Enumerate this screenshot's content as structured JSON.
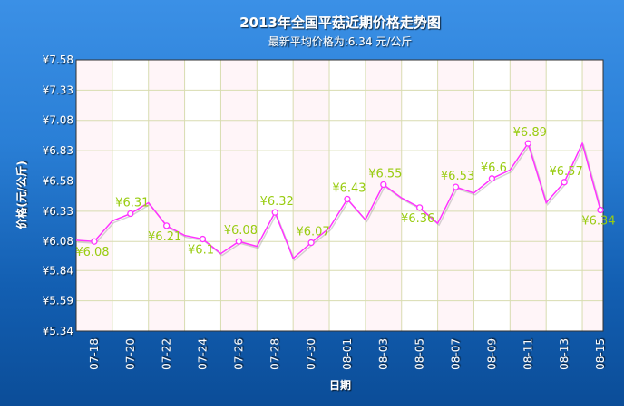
{
  "chart_data": {
    "type": "line",
    "title": "2013年全国平菇近期价格走势图",
    "subtitle": "最新平均价格为:6.34 元/公斤",
    "xlabel": "日期",
    "ylabel": "价格(元/公斤)",
    "ylim": [
      5.34,
      7.58
    ],
    "y_ticks": [
      "¥5.34",
      "¥5.59",
      "¥5.84",
      "¥6.08",
      "¥6.33",
      "¥6.58",
      "¥6.83",
      "¥7.08",
      "¥7.33",
      "¥7.58"
    ],
    "y_tick_values": [
      5.34,
      5.59,
      5.84,
      6.08,
      6.33,
      6.58,
      6.83,
      7.08,
      7.33,
      7.58
    ],
    "x_ticks": [
      "07-18",
      "07-20",
      "07-22",
      "07-24",
      "07-26",
      "07-28",
      "07-30",
      "08-01",
      "08-03",
      "08-05",
      "08-07",
      "08-09",
      "08-11",
      "08-13",
      "08-15"
    ],
    "x": [
      "07-17",
      "07-18",
      "07-19",
      "07-20",
      "07-21",
      "07-22",
      "07-23",
      "07-24",
      "07-25",
      "07-26",
      "07-27",
      "07-28",
      "07-29",
      "07-30",
      "07-31",
      "08-01",
      "08-02",
      "08-03",
      "08-04",
      "08-05",
      "08-06",
      "08-07",
      "08-08",
      "08-09",
      "08-10",
      "08-11",
      "08-12",
      "08-13",
      "08-14",
      "08-15"
    ],
    "values": [
      6.09,
      6.08,
      6.25,
      6.31,
      6.4,
      6.21,
      6.13,
      6.1,
      5.98,
      6.08,
      6.04,
      6.32,
      5.94,
      6.07,
      6.19,
      6.43,
      6.26,
      6.55,
      6.44,
      6.36,
      6.23,
      6.53,
      6.48,
      6.6,
      6.67,
      6.89,
      6.4,
      6.57,
      6.89,
      6.34
    ],
    "data_labels": [
      {
        "x": "07-18",
        "text": "¥6.08",
        "pos": "below"
      },
      {
        "x": "07-20",
        "text": "¥6.31",
        "pos": "above"
      },
      {
        "x": "07-22",
        "text": "¥6.21",
        "pos": "below"
      },
      {
        "x": "07-24",
        "text": "¥6.1",
        "pos": "below"
      },
      {
        "x": "07-26",
        "text": "¥6.08",
        "pos": "above"
      },
      {
        "x": "07-28",
        "text": "¥6.32",
        "pos": "above"
      },
      {
        "x": "07-30",
        "text": "¥6.07",
        "pos": "above"
      },
      {
        "x": "08-01",
        "text": "¥6.43",
        "pos": "above"
      },
      {
        "x": "08-03",
        "text": "¥6.55",
        "pos": "above"
      },
      {
        "x": "08-05",
        "text": "¥6.36",
        "pos": "below"
      },
      {
        "x": "08-07",
        "text": "¥6.53",
        "pos": "above"
      },
      {
        "x": "08-09",
        "text": "¥6.6",
        "pos": "above"
      },
      {
        "x": "08-11",
        "text": "¥6.89",
        "pos": "above"
      },
      {
        "x": "08-13",
        "text": "¥6.57",
        "pos": "above"
      },
      {
        "x": "08-15",
        "text": "¥6.34",
        "pos": "below"
      }
    ],
    "grid": true,
    "colors": {
      "line": "#ff33ff",
      "label": "#99cc11",
      "band": "#fff5f8",
      "grid": "#d8dcb0"
    }
  }
}
